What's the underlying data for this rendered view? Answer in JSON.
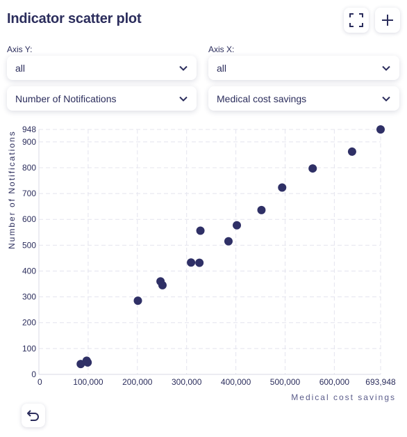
{
  "title": "Indicator scatter plot",
  "controls": {
    "axis_y_label": "Axis Y:",
    "axis_x_label": "Axis X:",
    "y_filter_value": "all",
    "x_filter_value": "all",
    "y_indicator_value": "Number of Notifications",
    "x_indicator_value": "Medical cost savings"
  },
  "icons": {
    "expand": "expand-icon",
    "add": "plus-icon",
    "undo": "undo-icon",
    "dropdown": "chevron-down-icon"
  },
  "colors": {
    "point": "#2f3066",
    "text": "#2b2d5c",
    "grid": "#e4e4ee"
  },
  "chart_data": {
    "type": "scatter",
    "xlabel": "Medical cost savings",
    "ylabel": "Number of Notifications",
    "xlim": [
      0,
      693948
    ],
    "ylim": [
      0,
      948
    ],
    "x_ticks": [
      0,
      100000,
      200000,
      300000,
      400000,
      500000,
      600000,
      693948
    ],
    "x_tick_labels": [
      "0",
      "100,000",
      "200,000",
      "300,000",
      "400,000",
      "500,000",
      "600,000",
      "693,948"
    ],
    "y_ticks": [
      0,
      100,
      200,
      300,
      400,
      500,
      600,
      700,
      800,
      900,
      948
    ],
    "y_tick_labels": [
      "0",
      "100",
      "200",
      "300",
      "400",
      "500",
      "600",
      "700",
      "800",
      "900",
      "948"
    ],
    "grid": true,
    "points": [
      {
        "x": 85000,
        "y": 40
      },
      {
        "x": 97000,
        "y": 53
      },
      {
        "x": 99000,
        "y": 46
      },
      {
        "x": 201000,
        "y": 285
      },
      {
        "x": 247000,
        "y": 360
      },
      {
        "x": 251000,
        "y": 345
      },
      {
        "x": 309000,
        "y": 433
      },
      {
        "x": 326000,
        "y": 432
      },
      {
        "x": 328000,
        "y": 556
      },
      {
        "x": 385000,
        "y": 515
      },
      {
        "x": 402000,
        "y": 577
      },
      {
        "x": 452000,
        "y": 636
      },
      {
        "x": 494000,
        "y": 723
      },
      {
        "x": 556000,
        "y": 797
      },
      {
        "x": 636000,
        "y": 862
      },
      {
        "x": 693948,
        "y": 948
      }
    ]
  }
}
